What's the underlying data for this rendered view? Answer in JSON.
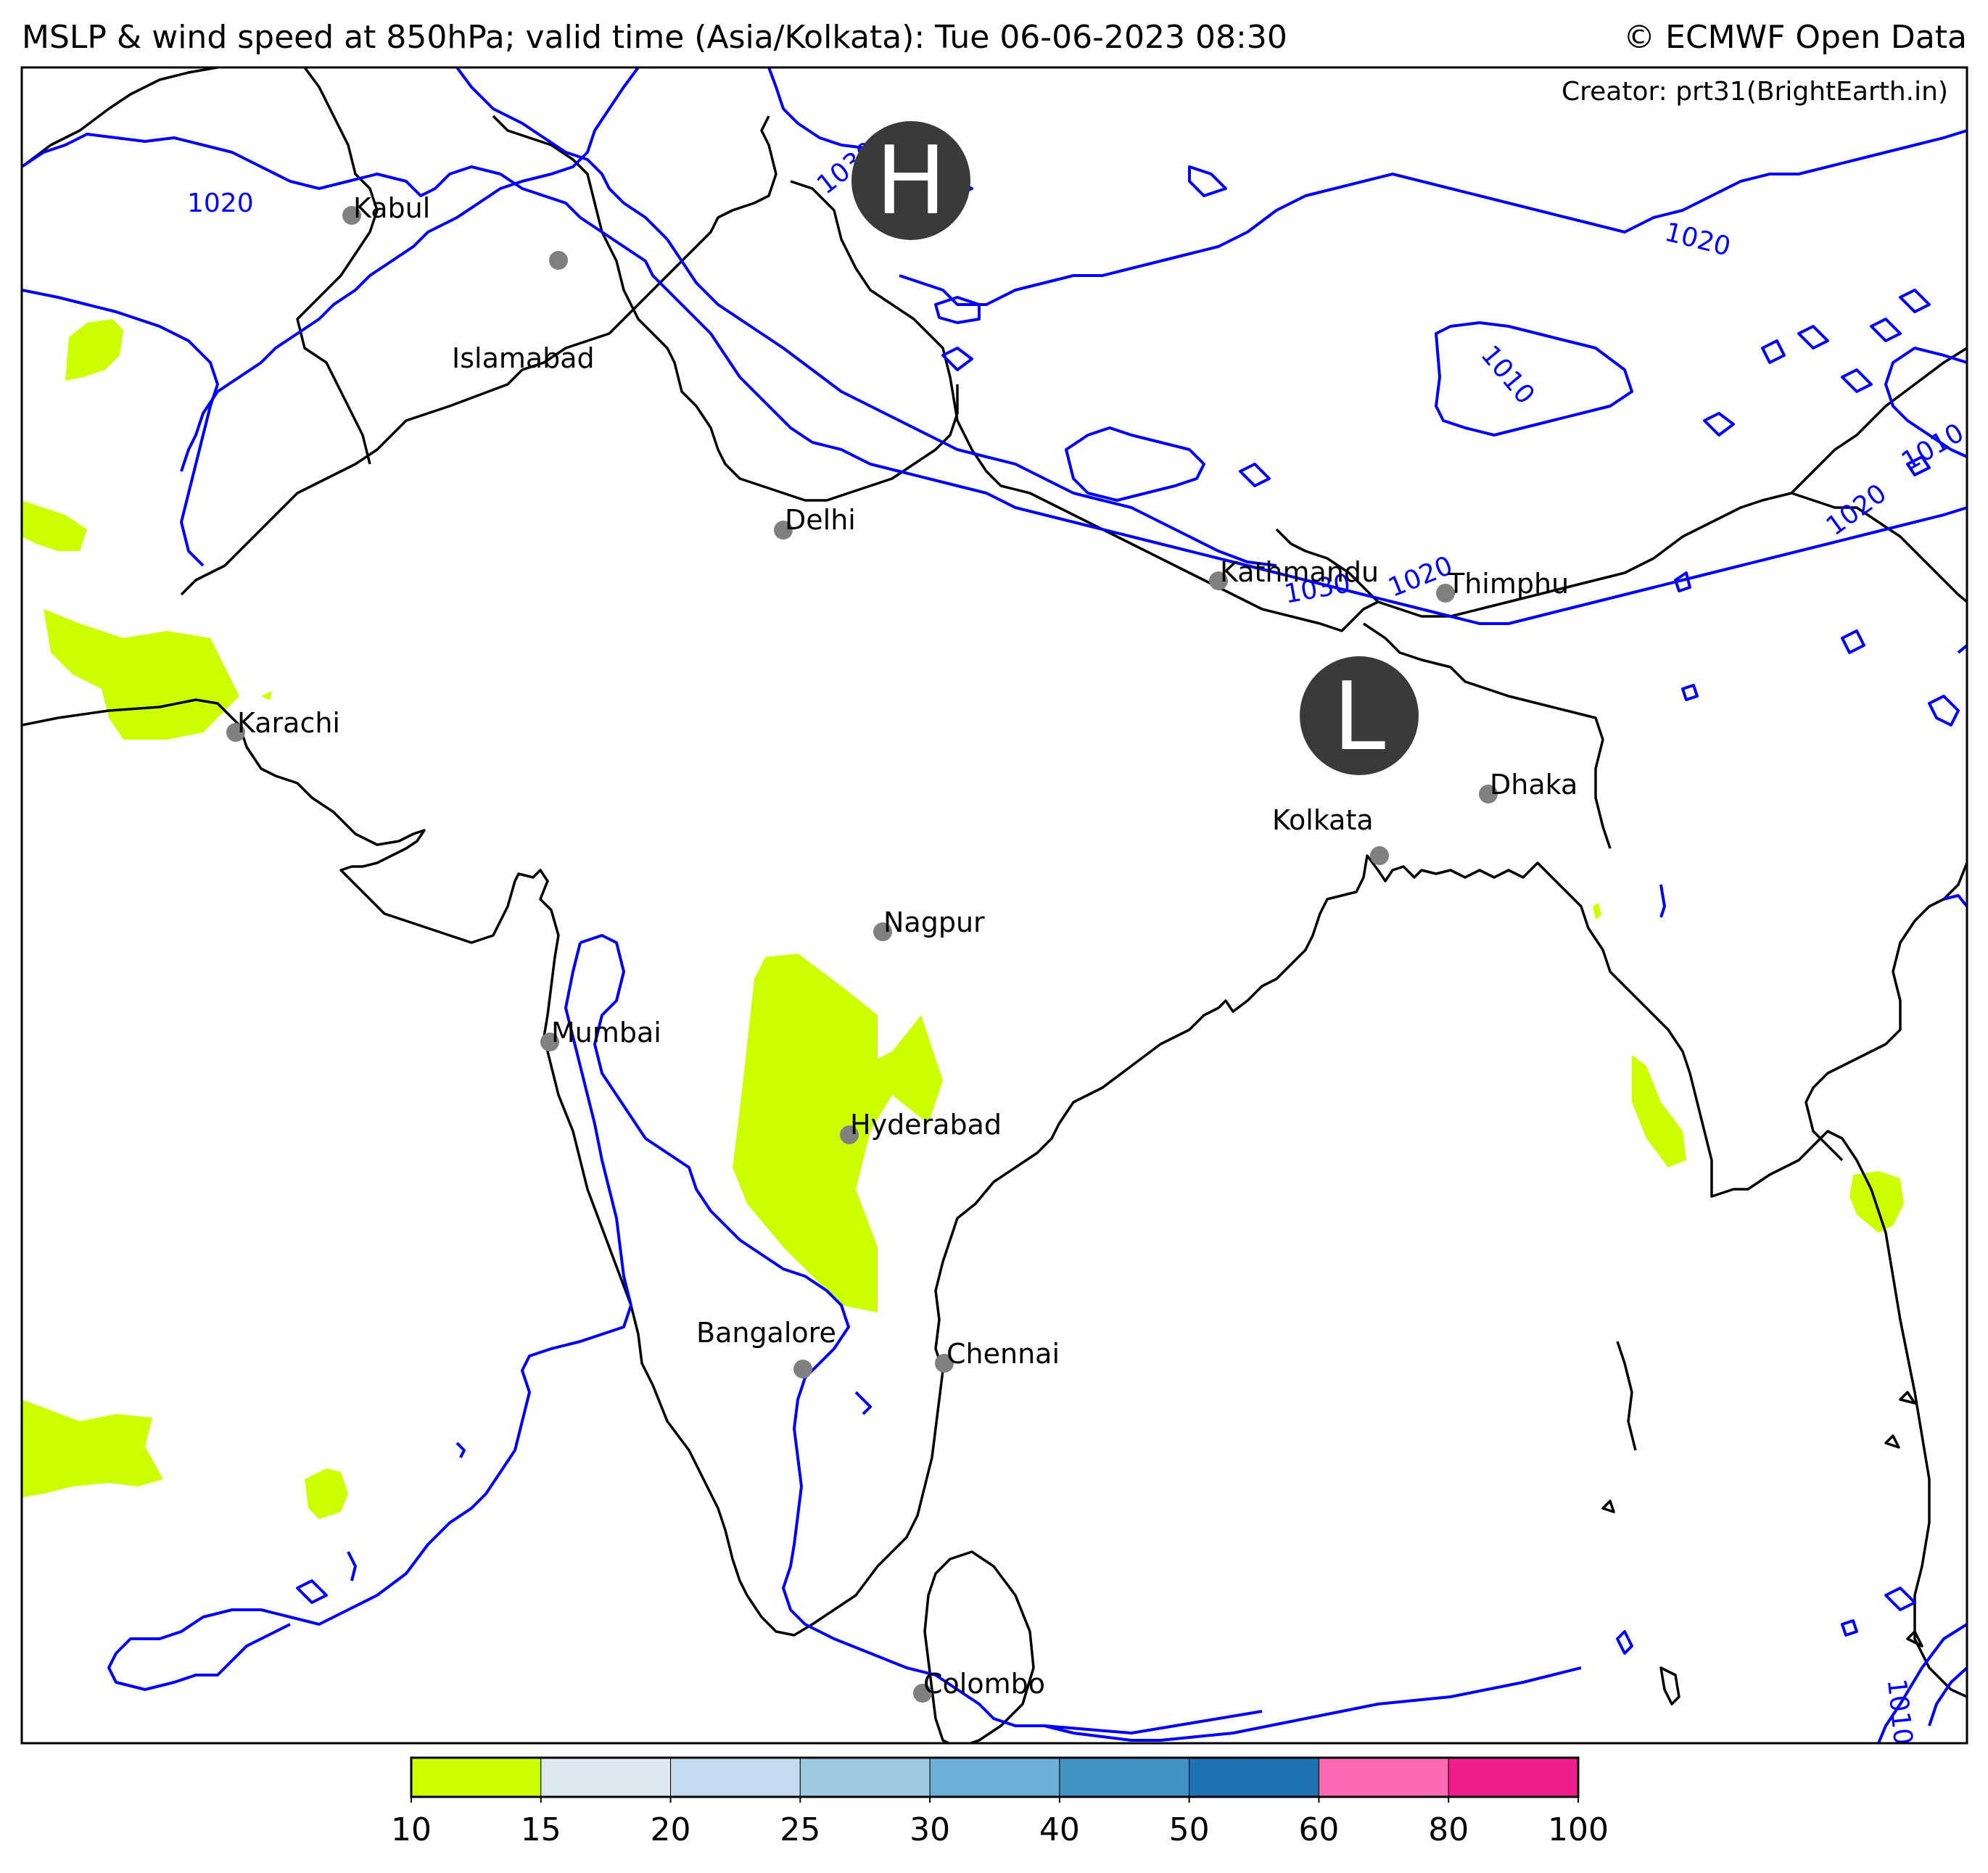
{
  "header": {
    "title": "MSLP & wind speed at 850hPa; valid time (Asia/Kolkata): Tue 06-06-2023 08:30",
    "credit": "© ECMWF Open Data",
    "creator": "Creator: prt31(BrightEarth.in)"
  },
  "pressure_centers": [
    {
      "letter": "H",
      "kind": "high"
    },
    {
      "letter": "L",
      "kind": "low"
    }
  ],
  "cities": [
    "Kabul",
    "Islamabad",
    "Delhi",
    "Kathmandu",
    "Thimphu",
    "Karachi",
    "Kolkata",
    "Dhaka",
    "Nagpur",
    "Mumbai",
    "Hyderabad",
    "Bangalore",
    "Chennai",
    "Colombo"
  ],
  "isobar_labels": [
    "1020",
    "1030",
    "1020",
    "1010",
    "1010",
    "1020",
    "1030",
    "1020",
    "1010"
  ],
  "colorbar": {
    "ticks": [
      "10",
      "15",
      "20",
      "25",
      "30",
      "40",
      "50",
      "60",
      "80",
      "100"
    ],
    "colors": [
      "#ccff00",
      "#dde8f3",
      "#c6dbef",
      "#9ecae1",
      "#6baed6",
      "#4292c6",
      "#2171b5",
      "#ff69b4",
      "#f01e8c"
    ]
  },
  "colors": {
    "isobar": "#0000ff",
    "wind_10_15": "#ccff00",
    "coastline": "#000000",
    "city_marker": "#808080",
    "pressure_badge": "#3a3a3a"
  }
}
